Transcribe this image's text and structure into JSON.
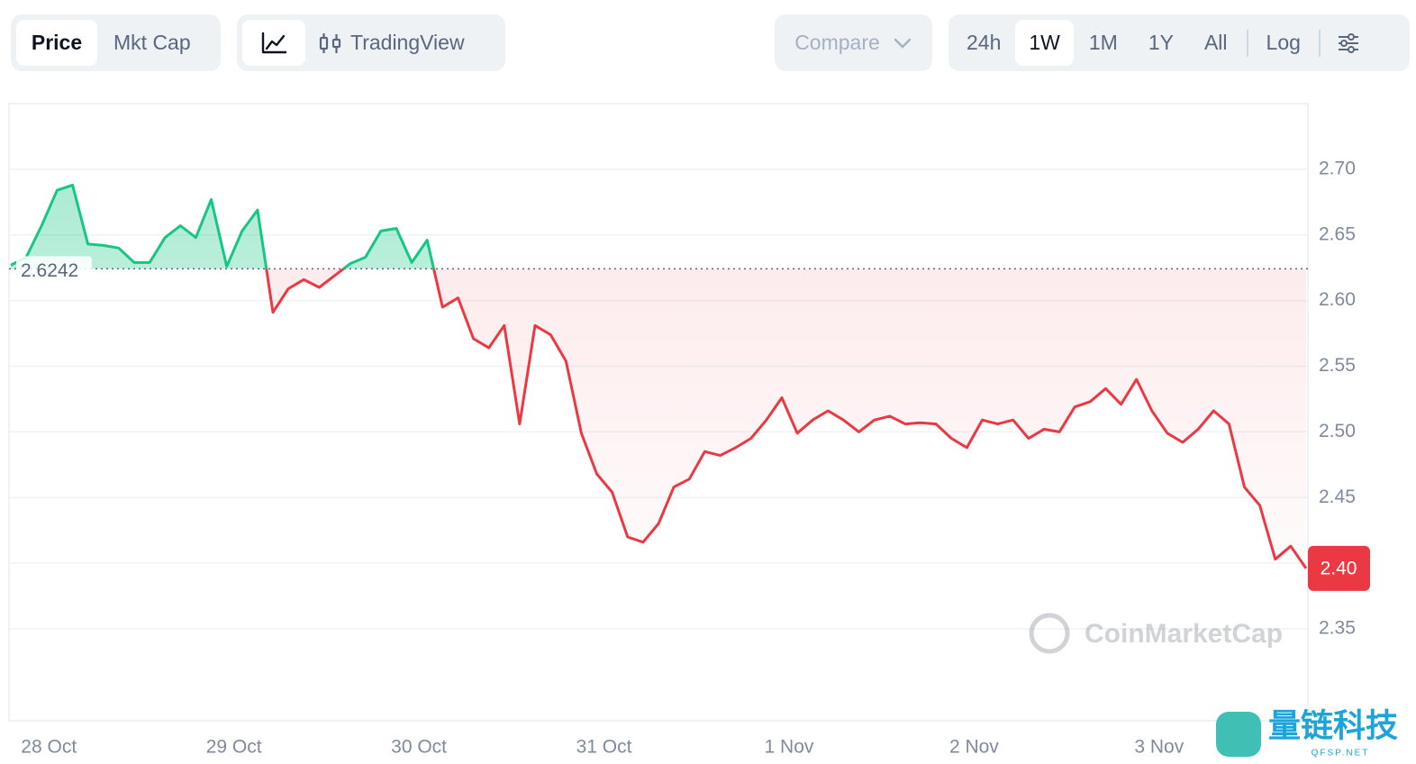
{
  "toolbar": {
    "view_tabs": [
      "Price",
      "Mkt Cap"
    ],
    "chart_tool": "TradingView",
    "compare": "Compare",
    "ranges": [
      "24h",
      "1W",
      "1M",
      "1Y",
      "All"
    ],
    "log": "Log"
  },
  "chart_data": {
    "type": "line",
    "categories": [
      null,
      null,
      "28 Oct",
      null,
      null,
      null,
      null,
      null,
      null,
      null,
      null,
      null,
      null,
      null,
      "29 Oct",
      null,
      null,
      null,
      null,
      null,
      null,
      null,
      null,
      null,
      null,
      null,
      "30 Oct",
      null,
      null,
      null,
      null,
      null,
      null,
      null,
      null,
      null,
      null,
      null,
      "31 Oct",
      null,
      null,
      null,
      null,
      null,
      null,
      null,
      null,
      null,
      null,
      null,
      "1 Nov",
      null,
      null,
      null,
      null,
      null,
      null,
      null,
      null,
      null,
      null,
      null,
      "2 Nov",
      null,
      null,
      null,
      null,
      null,
      null,
      null,
      null,
      null,
      null,
      null,
      "3 Nov",
      null,
      null,
      null,
      null,
      null,
      null,
      null,
      null,
      null,
      null
    ],
    "values": [
      2.627,
      2.633,
      2.657,
      2.684,
      2.688,
      2.643,
      2.642,
      2.64,
      2.629,
      2.629,
      2.648,
      2.657,
      2.648,
      2.677,
      2.626,
      2.653,
      2.669,
      2.591,
      2.609,
      2.616,
      2.61,
      2.619,
      2.628,
      2.633,
      2.653,
      2.655,
      2.629,
      2.646,
      2.595,
      2.602,
      2.571,
      2.564,
      2.581,
      2.506,
      2.581,
      2.574,
      2.554,
      2.499,
      2.468,
      2.454,
      2.42,
      2.416,
      2.43,
      2.458,
      2.464,
      2.485,
      2.482,
      2.488,
      2.495,
      2.509,
      2.526,
      2.499,
      2.509,
      2.516,
      2.509,
      2.5,
      2.509,
      2.512,
      2.506,
      2.507,
      2.506,
      2.495,
      2.488,
      2.509,
      2.506,
      2.509,
      2.495,
      2.502,
      2.5,
      2.519,
      2.523,
      2.533,
      2.521,
      2.54,
      2.516,
      2.499,
      2.492,
      2.502,
      2.516,
      2.506,
      2.458,
      2.444,
      2.403,
      2.413,
      2.396
    ],
    "last_value_label": "2.40",
    "baseline": 2.6242,
    "colors": {
      "above": "#16c784",
      "below": "#ea3943"
    },
    "ylim": [
      2.28,
      2.75
    ],
    "yticks": [
      {
        "value": 2.35,
        "label": "2.35"
      },
      {
        "value": 2.4,
        "label": "2.40"
      },
      {
        "value": 2.45,
        "label": "2.45"
      },
      {
        "value": 2.5,
        "label": "2.50"
      },
      {
        "value": 2.55,
        "label": "2.55"
      },
      {
        "value": 2.6,
        "label": "2.60"
      },
      {
        "value": 2.65,
        "label": "2.65"
      },
      {
        "value": 2.7,
        "label": "2.70"
      }
    ],
    "grid": true,
    "watermark": "CoinMarketCap",
    "overlay_logo": {
      "title": "量链科技",
      "site": "QFSP.NET"
    }
  }
}
